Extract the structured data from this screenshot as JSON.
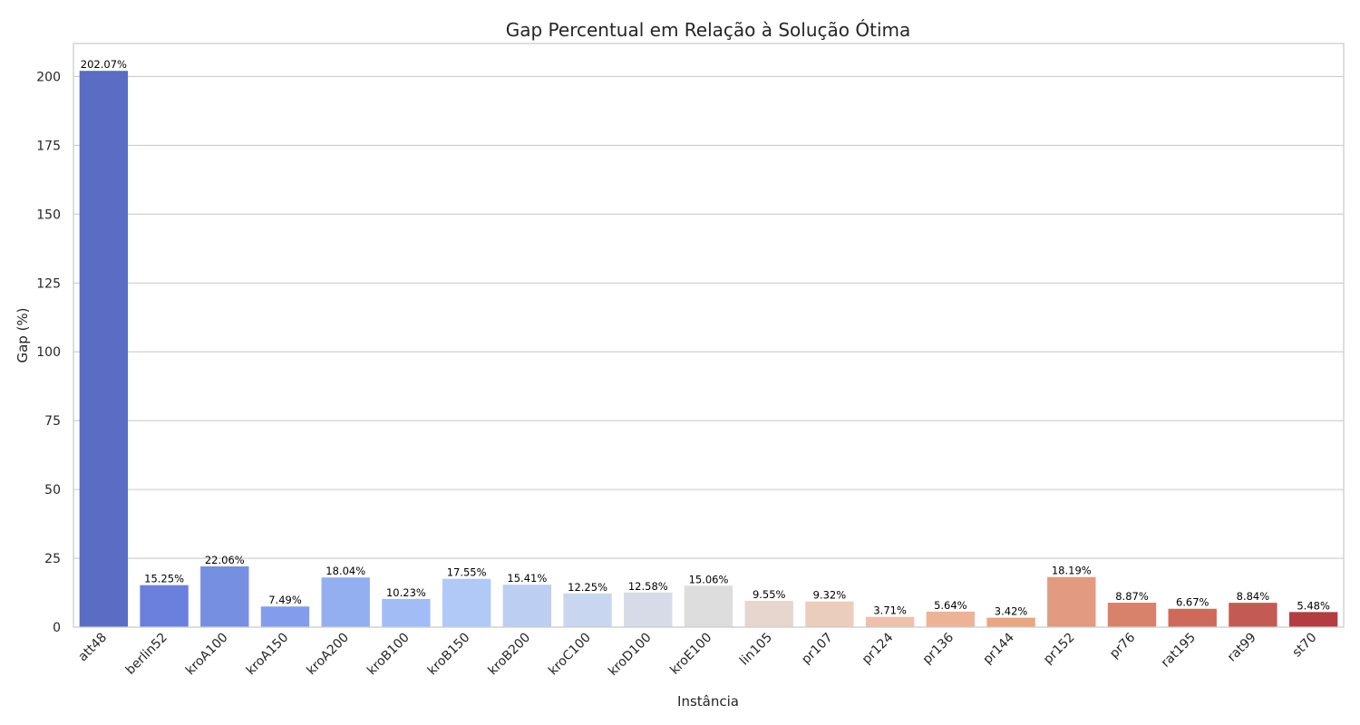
{
  "chart_data": {
    "type": "bar",
    "title": "Gap Percentual em Relação à Solução Ótima",
    "xlabel": "Instância",
    "ylabel": "Gap (%)",
    "ylim": [
      0,
      212
    ],
    "yticks": [
      0,
      25,
      50,
      75,
      100,
      125,
      150,
      175,
      200
    ],
    "grid": "horizontal",
    "categories": [
      "att48",
      "berlin52",
      "kroA100",
      "kroA150",
      "kroA200",
      "kroB100",
      "kroB150",
      "kroB200",
      "kroC100",
      "kroD100",
      "kroE100",
      "lin105",
      "pr107",
      "pr124",
      "pr136",
      "pr144",
      "pr152",
      "pr76",
      "rat195",
      "rat99",
      "st70"
    ],
    "values": [
      202.07,
      15.25,
      22.06,
      7.49,
      18.04,
      10.23,
      17.55,
      15.41,
      12.25,
      12.58,
      15.06,
      9.55,
      9.32,
      3.71,
      5.64,
      3.42,
      18.19,
      8.87,
      6.67,
      8.84,
      5.48
    ],
    "data_labels": [
      "202.07%",
      "15.25%",
      "22.06%",
      "7.49%",
      "18.04%",
      "10.23%",
      "17.55%",
      "15.41%",
      "12.25%",
      "12.58%",
      "15.06%",
      "9.55%",
      "9.32%",
      "3.71%",
      "5.64%",
      "3.42%",
      "18.19%",
      "8.87%",
      "6.67%",
      "8.84%",
      "5.48%"
    ],
    "colors": [
      "#5b6cc4",
      "#6a80dc",
      "#778fe0",
      "#839cec",
      "#94afef",
      "#a2bcf5",
      "#b0c9f7",
      "#bccff2",
      "#c9d6ef",
      "#d6dbe7",
      "#dddddd",
      "#e6d6ce",
      "#ebcdbe",
      "#eec1ac",
      "#edb396",
      "#eaa583",
      "#e29a80",
      "#d9826b",
      "#cd6a5b",
      "#c35b54",
      "#b23e42"
    ]
  }
}
